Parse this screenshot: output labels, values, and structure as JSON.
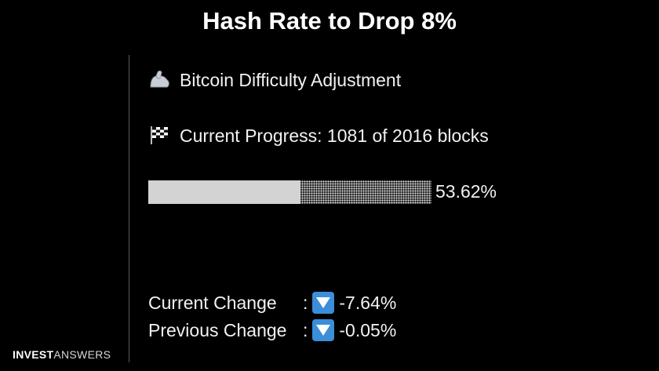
{
  "title": "Hash Rate to Drop 8%",
  "adjustment": {
    "heading": "Bitcoin Difficulty Adjustment",
    "heading_icon": "flexed-biceps-icon"
  },
  "progress": {
    "text": "Current Progress: 1081 of 2016 blocks",
    "icon": "checkered-flag-icon",
    "fraction": 0.5362,
    "percent_label": "53.62%"
  },
  "changes": {
    "current_label": "Current Change",
    "current_colon": ":",
    "current_value": "-7.64%",
    "previous_label": "Previous Change",
    "previous_colon": ":",
    "previous_value": "-0.05%",
    "indicator_icon": "down-arrow-button-icon",
    "indicator_color": "#3b8ed8"
  },
  "brand": {
    "bold": "INVEST",
    "regular": "ANSWERS"
  }
}
